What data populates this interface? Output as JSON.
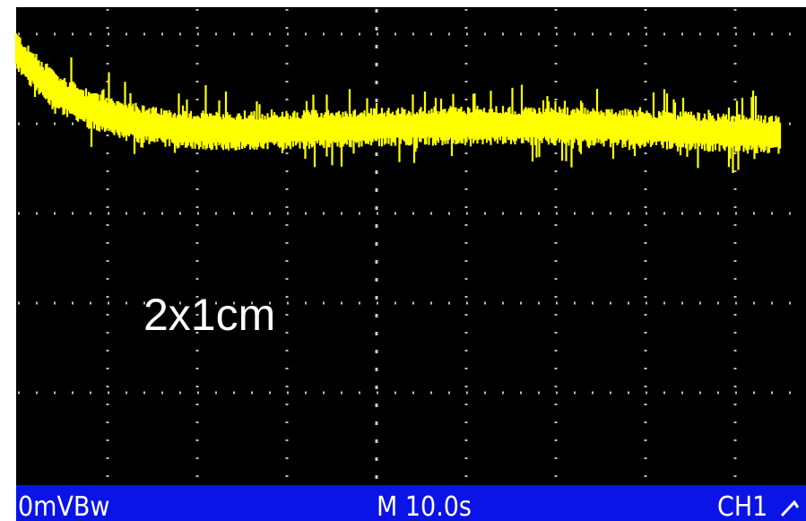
{
  "screen": {
    "annotation": "2x1cm"
  },
  "status_bar": {
    "left": "0mVBw",
    "center": "M 10.0s",
    "right": "CH1"
  }
}
